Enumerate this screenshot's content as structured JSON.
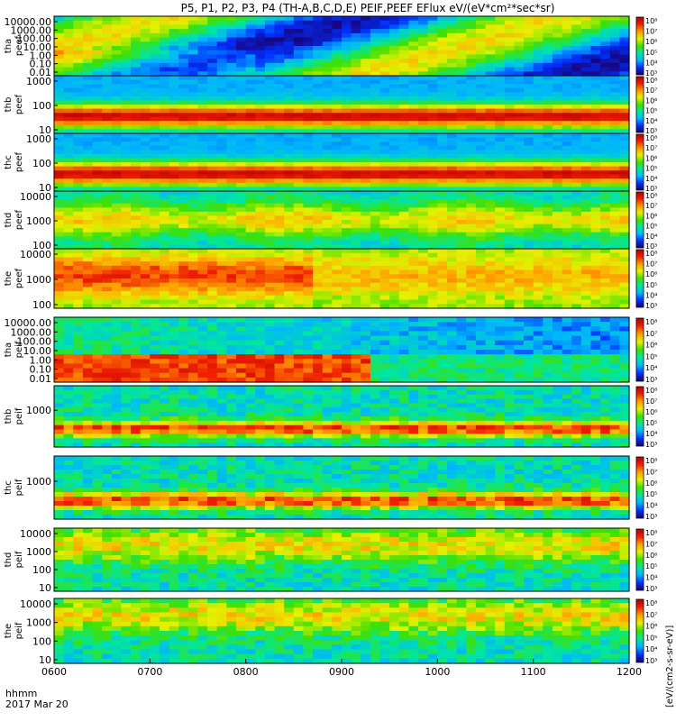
{
  "chart_data": {
    "type": "heatmap",
    "title": "P5, P1, P2, P3, P4 (TH-A,B,C,D,E) PEIF,PEEF EFlux eV/(eV*cm²*sec*sr)",
    "x_axis": {
      "label_line1": "hhmm",
      "label_line2": "2017 Mar 20",
      "range": [
        "0600",
        "1200"
      ],
      "ticks": [
        "0600",
        "0700",
        "0800",
        "0900",
        "1000",
        "1100",
        "1200"
      ]
    },
    "colorbar_label": "[eV/(cm2-s-sr-eV)]",
    "colorbar_ticks": [
      "10³",
      "10⁴",
      "10⁵",
      "10⁶",
      "10⁷",
      "10⁸"
    ],
    "colormap": [
      "#1a0070",
      "#0030ff",
      "#00b4ff",
      "#00e6a0",
      "#40e000",
      "#e6f000",
      "#ffa000",
      "#f02000",
      "#b40000"
    ],
    "log_scale_y": true,
    "panels": [
      {
        "id": "tha_peef",
        "label_top": "tha",
        "label_bottom": "peef",
        "yticks": [
          "10000.00",
          "1000.00",
          "100.00",
          "10.00",
          "1.00",
          "0.10",
          "0.01"
        ]
      },
      {
        "id": "thb_peef",
        "label_top": "thb",
        "label_bottom": "peef",
        "yticks": [
          "1000",
          "100",
          "10"
        ]
      },
      {
        "id": "thc_peef",
        "label_top": "thc",
        "label_bottom": "peef",
        "yticks": [
          "1000",
          "100",
          "10"
        ]
      },
      {
        "id": "thd_peef",
        "label_top": "thd",
        "label_bottom": "peef",
        "yticks": [
          "10000",
          "1000",
          "100"
        ]
      },
      {
        "id": "the_peef",
        "label_top": "the",
        "label_bottom": "peef",
        "yticks": [
          "10000",
          "1000",
          "100"
        ]
      },
      {
        "id": "tha_peif",
        "label_top": "tha",
        "label_bottom": "peif",
        "yticks": [
          "10000.00",
          "1000.00",
          "100.00",
          "10.00",
          "1.00",
          "0.10",
          "0.01"
        ]
      },
      {
        "id": "thb_peif",
        "label_top": "thb",
        "label_bottom": "peif",
        "yticks": [
          "1000"
        ]
      },
      {
        "id": "thc_peif",
        "label_top": "thc",
        "label_bottom": "peif",
        "yticks": [
          "1000"
        ]
      },
      {
        "id": "thd_peif",
        "label_top": "thd",
        "label_bottom": "peif",
        "yticks": [
          "10000",
          "1000",
          "100",
          "10"
        ]
      },
      {
        "id": "the_peif",
        "label_top": "the",
        "label_bottom": "peif",
        "yticks": [
          "10000",
          "1000",
          "100",
          "10"
        ]
      }
    ]
  }
}
